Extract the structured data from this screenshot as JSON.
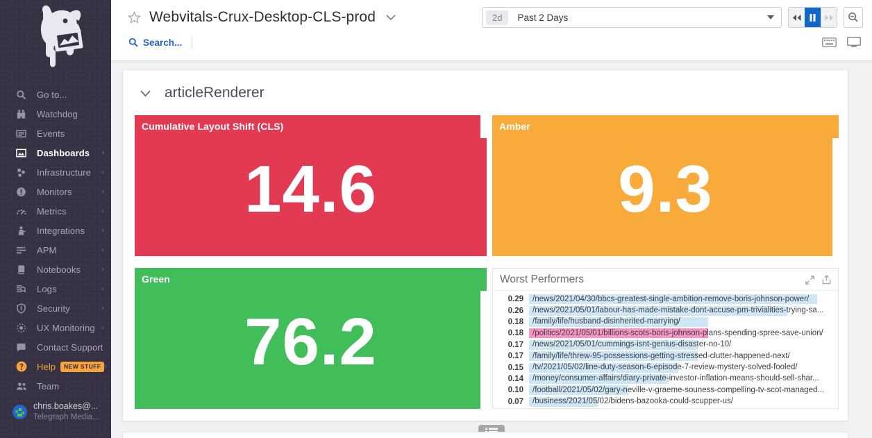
{
  "colors": {
    "red": "#e33a54",
    "amber": "#f8ab3b",
    "green": "#41bd59",
    "bar_blue": "#cfe6f4",
    "bar_pink": "#f995c5",
    "pause_blue": "#1266c8",
    "help_orange": "#f7a43c",
    "sidebar_bg": "#373144"
  },
  "sidebar": {
    "items": [
      {
        "label": "Go to...",
        "icon": "search-icon",
        "active": false,
        "caret": false
      },
      {
        "label": "Watchdog",
        "icon": "binoculars-icon",
        "active": false,
        "caret": false
      },
      {
        "label": "Events",
        "icon": "events-icon",
        "active": false,
        "caret": false
      },
      {
        "label": "Dashboards",
        "icon": "dashboards-icon",
        "active": true,
        "caret": true
      },
      {
        "label": "Infrastructure",
        "icon": "infrastructure-icon",
        "active": false,
        "caret": true
      },
      {
        "label": "Monitors",
        "icon": "monitors-icon",
        "active": false,
        "caret": true
      },
      {
        "label": "Metrics",
        "icon": "metrics-icon",
        "active": false,
        "caret": true
      },
      {
        "label": "Integrations",
        "icon": "integrations-icon",
        "active": false,
        "caret": true
      },
      {
        "label": "APM",
        "icon": "apm-icon",
        "active": false,
        "caret": true
      },
      {
        "label": "Notebooks",
        "icon": "notebooks-icon",
        "active": false,
        "caret": true
      },
      {
        "label": "Logs",
        "icon": "logs-icon",
        "active": false,
        "caret": true
      },
      {
        "label": "Security",
        "icon": "security-icon",
        "active": false,
        "caret": true
      },
      {
        "label": "UX Monitoring",
        "icon": "ux-monitoring-icon",
        "active": false,
        "caret": true
      },
      {
        "label": "Contact Support",
        "icon": "chat-icon",
        "active": false,
        "caret": false
      },
      {
        "label": "Help",
        "icon": "help-icon",
        "active": false,
        "caret": true,
        "badge": "NEW STUFF",
        "orange": true
      },
      {
        "label": "Team",
        "icon": "team-icon",
        "active": false,
        "caret": false
      }
    ],
    "user": {
      "name": "chris.boakes@...",
      "org": "Telegraph Media..."
    }
  },
  "header": {
    "title": "Webvitals-Crux-Desktop-CLS-prod",
    "search_label": "Search...",
    "time_range": {
      "badge": "2d",
      "label": "Past 2 Days"
    }
  },
  "section": {
    "title": "articleRenderer"
  },
  "widgets": {
    "cls": {
      "title": "Cumulative Layout Shift (CLS)",
      "value": "14.6"
    },
    "amber": {
      "title": "Amber",
      "value": "9.3"
    },
    "green": {
      "title": "Green",
      "value": "76.2"
    },
    "worst": {
      "title": "Worst Performers",
      "max_value": 0.29,
      "rows": [
        {
          "value": "0.29",
          "url": "/news/2021/04/30/bbcs-greatest-single-ambition-remove-boris-johnson-power/",
          "highlight": "blue"
        },
        {
          "value": "0.26",
          "url": "/news/2021/05/01/labour-has-made-mistake-dont-accuse-pm-trivialities-trying-sa...",
          "highlight": "blue"
        },
        {
          "value": "0.18",
          "url": "/family/life/husband-disinherited-marrying/",
          "highlight": "blue"
        },
        {
          "value": "0.18",
          "url": "/politics/2021/05/01/billions-scots-boris-johnson-plans-spending-spree-save-union/",
          "highlight": "pink"
        },
        {
          "value": "0.17",
          "url": "/news/2021/05/01/cummings-isnt-genius-disaster-no-10/",
          "highlight": "blue"
        },
        {
          "value": "0.17",
          "url": "/family/life/threw-95-possessions-getting-stressed-clutter-happened-next/",
          "highlight": "blue"
        },
        {
          "value": "0.15",
          "url": "/tv/2021/05/02/line-duty-season-6-episode-7-review-mystery-solved-fooled/",
          "highlight": "blue"
        },
        {
          "value": "0.14",
          "url": "/money/consumer-affairs/diary-private-investor-inflation-means-should-sell-shar...",
          "highlight": "blue"
        },
        {
          "value": "0.10",
          "url": "/football/2021/05/02/gary-neville-v-graeme-souness-compelling-tv-scot-managed...",
          "highlight": "blue"
        },
        {
          "value": "0.07",
          "url": "/business/2021/05/02/bidens-bazooka-could-scupper-us/",
          "highlight": "blue"
        }
      ]
    }
  }
}
